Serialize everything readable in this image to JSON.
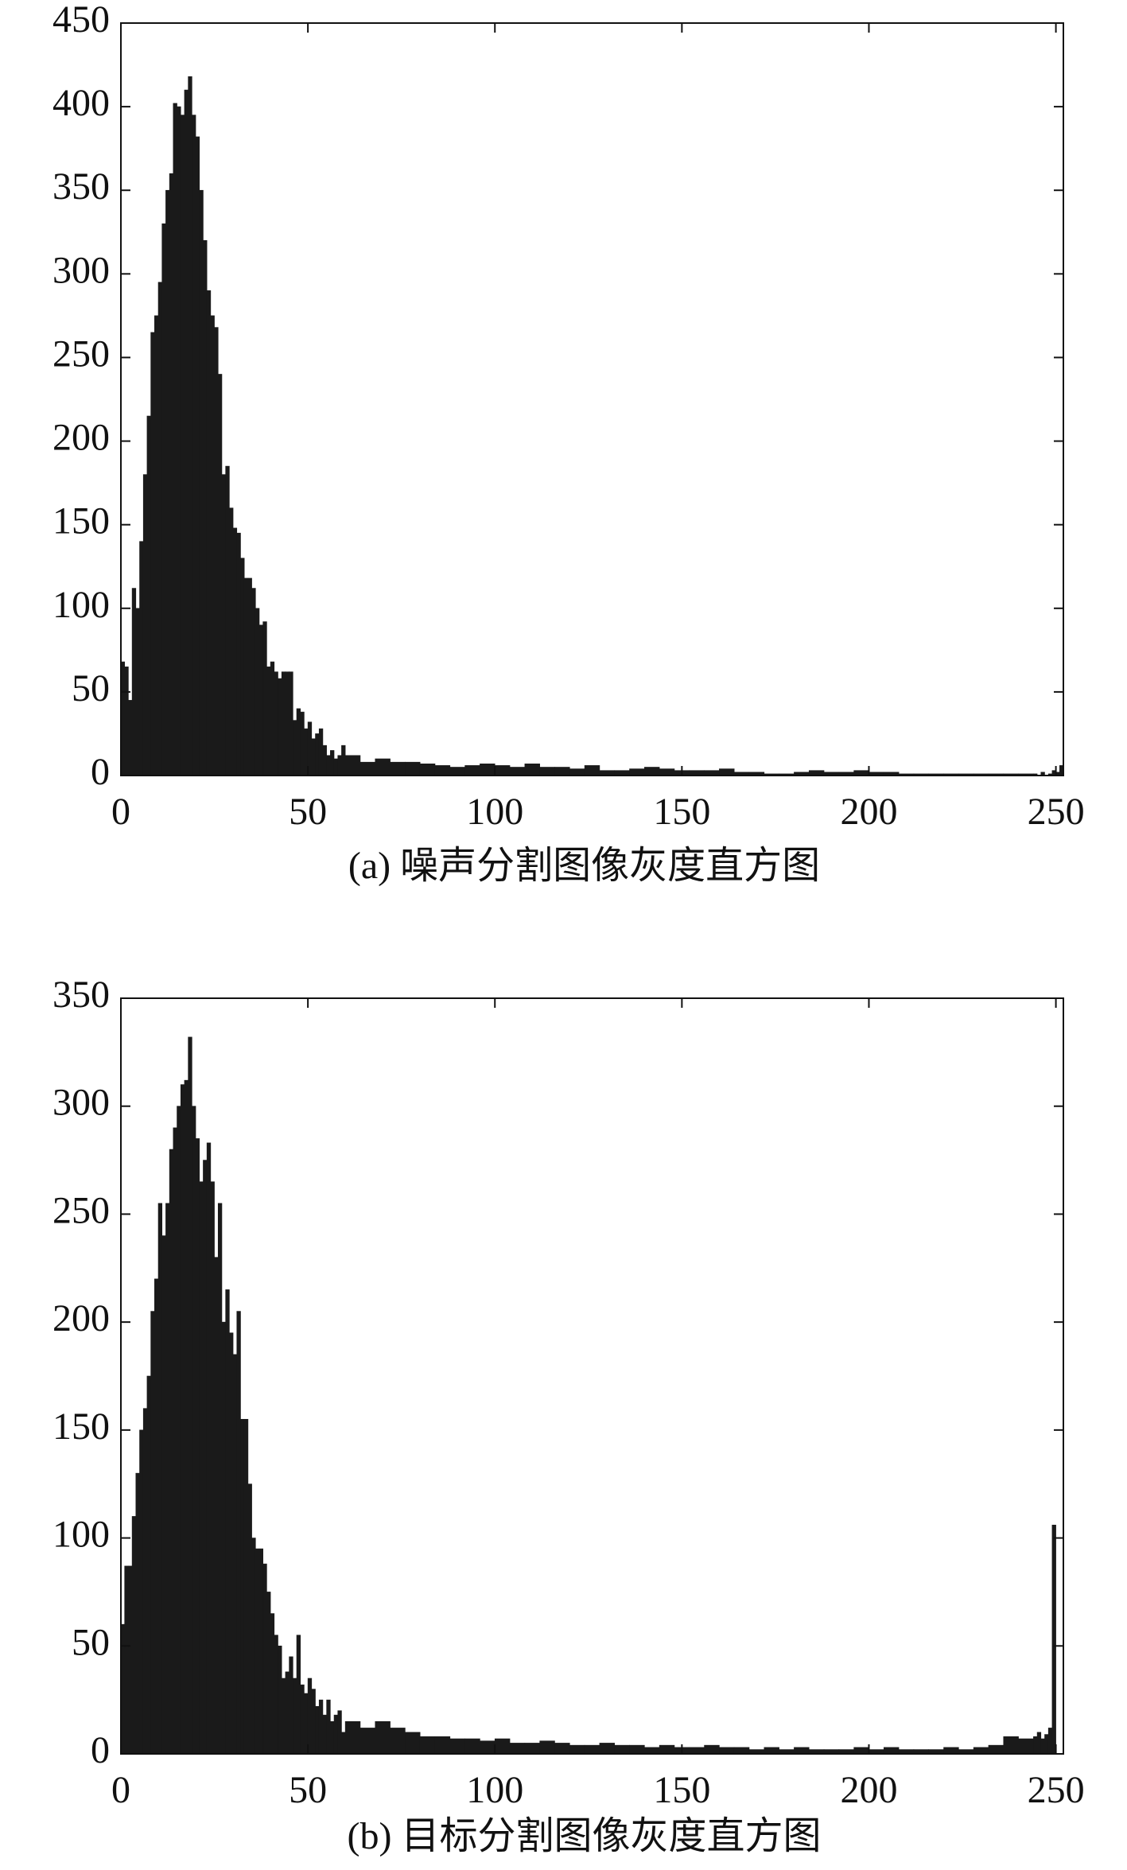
{
  "chart_data": [
    {
      "type": "histogram",
      "caption": "(a) 噪声分割图像灰度直方图",
      "color": "#1a1a1a",
      "bins": [
        0,
        1,
        2,
        3,
        4,
        5,
        6,
        7,
        8,
        9,
        10,
        11,
        12,
        13,
        14,
        15,
        16,
        17,
        18,
        19,
        20,
        21,
        22,
        23,
        24,
        25,
        26,
        27,
        28,
        29,
        30,
        31,
        32,
        33,
        34,
        35,
        36,
        37,
        38,
        39,
        40,
        41,
        42,
        43,
        44,
        45,
        46,
        47,
        48,
        49,
        50,
        51,
        52,
        53,
        54,
        55,
        56,
        57,
        58,
        59,
        60,
        64,
        68,
        72,
        76,
        80,
        84,
        88,
        92,
        96,
        100,
        104,
        108,
        112,
        116,
        120,
        124,
        128,
        132,
        136,
        140,
        144,
        148,
        152,
        156,
        160,
        164,
        168,
        172,
        176,
        180,
        184,
        188,
        192,
        196,
        200,
        204,
        208,
        212,
        216,
        220,
        224,
        228,
        232,
        236,
        240,
        244,
        245,
        246,
        247,
        248,
        249,
        250,
        251,
        252
      ],
      "values": [
        68,
        65,
        45,
        112,
        100,
        140,
        180,
        215,
        265,
        275,
        295,
        330,
        350,
        360,
        402,
        400,
        395,
        410,
        418,
        395,
        382,
        350,
        320,
        290,
        275,
        268,
        240,
        180,
        185,
        160,
        148,
        145,
        130,
        118,
        118,
        112,
        100,
        90,
        92,
        65,
        68,
        62,
        58,
        62,
        62,
        62,
        33,
        40,
        38,
        28,
        32,
        22,
        25,
        28,
        18,
        12,
        15,
        10,
        12,
        18,
        12,
        8,
        10,
        8,
        8,
        7,
        6,
        5,
        6,
        7,
        6,
        5,
        7,
        5,
        5,
        4,
        6,
        3,
        3,
        4,
        5,
        4,
        3,
        3,
        3,
        4,
        2,
        2,
        1,
        1,
        2,
        3,
        2,
        2,
        3,
        2,
        2,
        1,
        1,
        1,
        1,
        1,
        1,
        1,
        1,
        1,
        1,
        0,
        2,
        0,
        1,
        3,
        2,
        6
      ],
      "xlim": [
        0,
        252
      ],
      "xticks": [
        0,
        50,
        100,
        150,
        200,
        250
      ],
      "ylim": [
        0,
        450
      ],
      "yticks": [
        0,
        50,
        100,
        150,
        200,
        250,
        300,
        350,
        400,
        450
      ]
    },
    {
      "type": "histogram",
      "caption": "(b) 目标分割图像灰度直方图",
      "color": "#1a1a1a",
      "bins": [
        0,
        1,
        2,
        3,
        4,
        5,
        6,
        7,
        8,
        9,
        10,
        11,
        12,
        13,
        14,
        15,
        16,
        17,
        18,
        19,
        20,
        21,
        22,
        23,
        24,
        25,
        26,
        27,
        28,
        29,
        30,
        31,
        32,
        33,
        34,
        35,
        36,
        37,
        38,
        39,
        40,
        41,
        42,
        43,
        44,
        45,
        46,
        47,
        48,
        49,
        50,
        51,
        52,
        53,
        54,
        55,
        56,
        57,
        58,
        59,
        60,
        64,
        68,
        72,
        76,
        80,
        84,
        88,
        92,
        96,
        100,
        104,
        108,
        112,
        116,
        120,
        124,
        128,
        132,
        136,
        140,
        144,
        148,
        152,
        156,
        160,
        164,
        168,
        172,
        176,
        180,
        184,
        188,
        192,
        196,
        200,
        204,
        208,
        212,
        216,
        220,
        224,
        228,
        232,
        236,
        240,
        244,
        245,
        246,
        247,
        248,
        249,
        250,
        251,
        252
      ],
      "values": [
        60,
        87,
        87,
        110,
        130,
        150,
        160,
        175,
        205,
        220,
        255,
        240,
        255,
        280,
        290,
        300,
        310,
        312,
        332,
        300,
        285,
        265,
        275,
        283,
        265,
        230,
        255,
        200,
        215,
        195,
        185,
        205,
        155,
        155,
        125,
        100,
        95,
        95,
        88,
        75,
        65,
        55,
        50,
        35,
        38,
        45,
        35,
        55,
        32,
        28,
        35,
        30,
        22,
        25,
        18,
        25,
        15,
        18,
        20,
        10,
        15,
        12,
        15,
        12,
        10,
        8,
        8,
        7,
        7,
        6,
        7,
        5,
        5,
        6,
        5,
        4,
        4,
        5,
        4,
        4,
        3,
        4,
        3,
        3,
        4,
        3,
        3,
        2,
        3,
        2,
        3,
        2,
        2,
        2,
        3,
        2,
        3,
        2,
        2,
        2,
        3,
        2,
        3,
        4,
        8,
        7,
        8,
        10,
        7,
        9,
        12,
        106,
        0,
        0
      ],
      "xlim": [
        0,
        252
      ],
      "xticks": [
        0,
        50,
        100,
        150,
        200,
        250
      ],
      "ylim": [
        0,
        350
      ],
      "yticks": [
        0,
        50,
        100,
        150,
        200,
        250,
        300,
        350
      ]
    }
  ]
}
